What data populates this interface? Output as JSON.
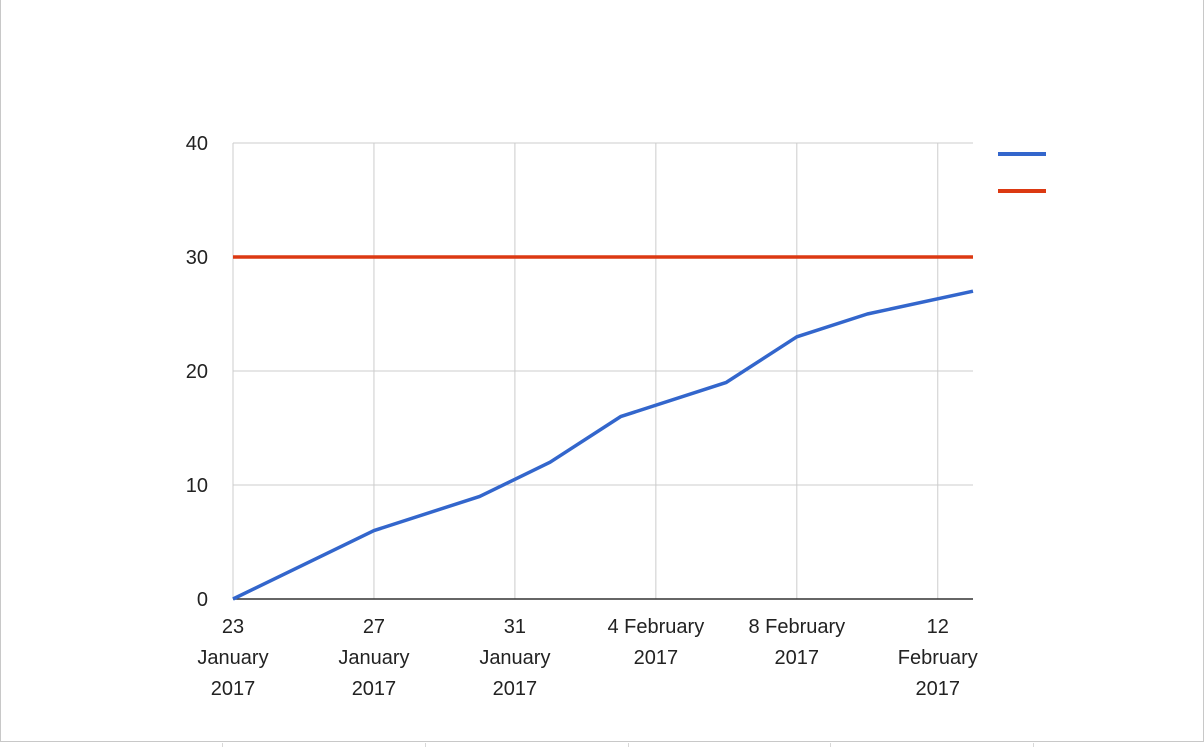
{
  "chart_data": {
    "type": "line",
    "title": "",
    "xlabel": "",
    "ylabel": "",
    "ylim": [
      0,
      40
    ],
    "xlim": [
      "2017-01-23",
      "2017-02-13"
    ],
    "grid": true,
    "legend": "right",
    "y_ticks": [
      "0",
      "10",
      "20",
      "30",
      "40"
    ],
    "x_ticks": [
      {
        "date": "2017-01-23",
        "lines": [
          "23",
          "January",
          "2017"
        ]
      },
      {
        "date": "2017-01-27",
        "lines": [
          "27",
          "January",
          "2017"
        ]
      },
      {
        "date": "2017-01-31",
        "lines": [
          "31",
          "January",
          "2017"
        ]
      },
      {
        "date": "2017-02-04",
        "lines": [
          "4 February",
          "2017"
        ]
      },
      {
        "date": "2017-02-08",
        "lines": [
          "8 February",
          "2017"
        ]
      },
      {
        "date": "2017-02-12",
        "lines": [
          "12",
          "February",
          "2017"
        ]
      }
    ],
    "series": [
      {
        "color": "#3366cc",
        "x": [
          "2017-01-23",
          "2017-01-27",
          "2017-01-30",
          "2017-02-01",
          "2017-02-03",
          "2017-02-06",
          "2017-02-08",
          "2017-02-10",
          "2017-02-13"
        ],
        "y": [
          0,
          6,
          9,
          12,
          16,
          19,
          23,
          25,
          27
        ]
      },
      {
        "color": "#dc3912",
        "x": [
          "2017-01-23",
          "2017-02-13"
        ],
        "y": [
          30,
          30
        ]
      }
    ]
  }
}
